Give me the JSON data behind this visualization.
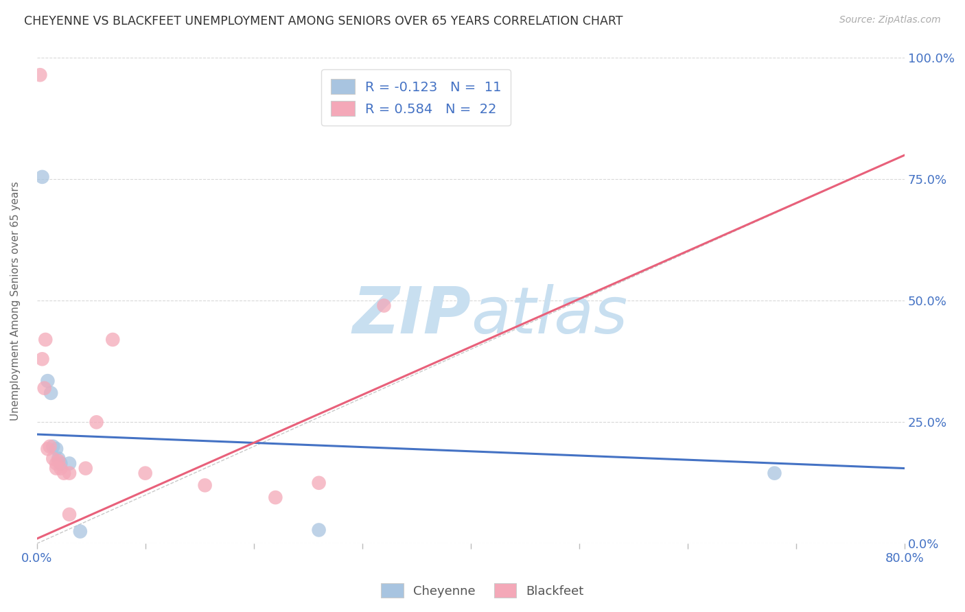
{
  "title": "CHEYENNE VS BLACKFEET UNEMPLOYMENT AMONG SENIORS OVER 65 YEARS CORRELATION CHART",
  "source": "Source: ZipAtlas.com",
  "ylabel": "Unemployment Among Seniors over 65 years",
  "xlim": [
    0.0,
    0.8
  ],
  "ylim": [
    0.0,
    1.0
  ],
  "xticks": [
    0.0,
    0.1,
    0.2,
    0.3,
    0.4,
    0.5,
    0.6,
    0.7,
    0.8
  ],
  "yticks": [
    0.0,
    0.25,
    0.5,
    0.75,
    1.0
  ],
  "cheyenne_label": "Cheyenne",
  "blackfeet_label": "Blackfeet",
  "cheyenne_R": "-0.123",
  "cheyenne_N": "11",
  "blackfeet_R": "0.584",
  "blackfeet_N": "22",
  "cheyenne_color": "#a8c4e0",
  "blackfeet_color": "#f4a8b8",
  "cheyenne_line_color": "#4472c4",
  "blackfeet_line_color": "#e8607a",
  "reference_line_color": "#c8c8c8",
  "cheyenne_line": [
    0.0,
    0.225,
    0.8,
    0.155
  ],
  "blackfeet_line": [
    0.0,
    0.01,
    0.8,
    0.8
  ],
  "cheyenne_points": [
    [
      0.005,
      0.755
    ],
    [
      0.01,
      0.335
    ],
    [
      0.013,
      0.31
    ],
    [
      0.015,
      0.2
    ],
    [
      0.018,
      0.195
    ],
    [
      0.02,
      0.175
    ],
    [
      0.022,
      0.165
    ],
    [
      0.03,
      0.165
    ],
    [
      0.04,
      0.025
    ],
    [
      0.26,
      0.028
    ],
    [
      0.68,
      0.145
    ]
  ],
  "blackfeet_points": [
    [
      0.003,
      0.965
    ],
    [
      0.005,
      0.38
    ],
    [
      0.007,
      0.32
    ],
    [
      0.008,
      0.42
    ],
    [
      0.01,
      0.195
    ],
    [
      0.012,
      0.2
    ],
    [
      0.015,
      0.175
    ],
    [
      0.018,
      0.165
    ],
    [
      0.018,
      0.155
    ],
    [
      0.02,
      0.17
    ],
    [
      0.022,
      0.155
    ],
    [
      0.025,
      0.145
    ],
    [
      0.03,
      0.145
    ],
    [
      0.03,
      0.06
    ],
    [
      0.045,
      0.155
    ],
    [
      0.055,
      0.25
    ],
    [
      0.07,
      0.42
    ],
    [
      0.1,
      0.145
    ],
    [
      0.155,
      0.12
    ],
    [
      0.22,
      0.095
    ],
    [
      0.26,
      0.125
    ],
    [
      0.32,
      0.49
    ]
  ],
  "background_color": "#ffffff",
  "watermark_text_1": "ZIP",
  "watermark_text_2": "atlas",
  "watermark_color": "#c8dff0"
}
